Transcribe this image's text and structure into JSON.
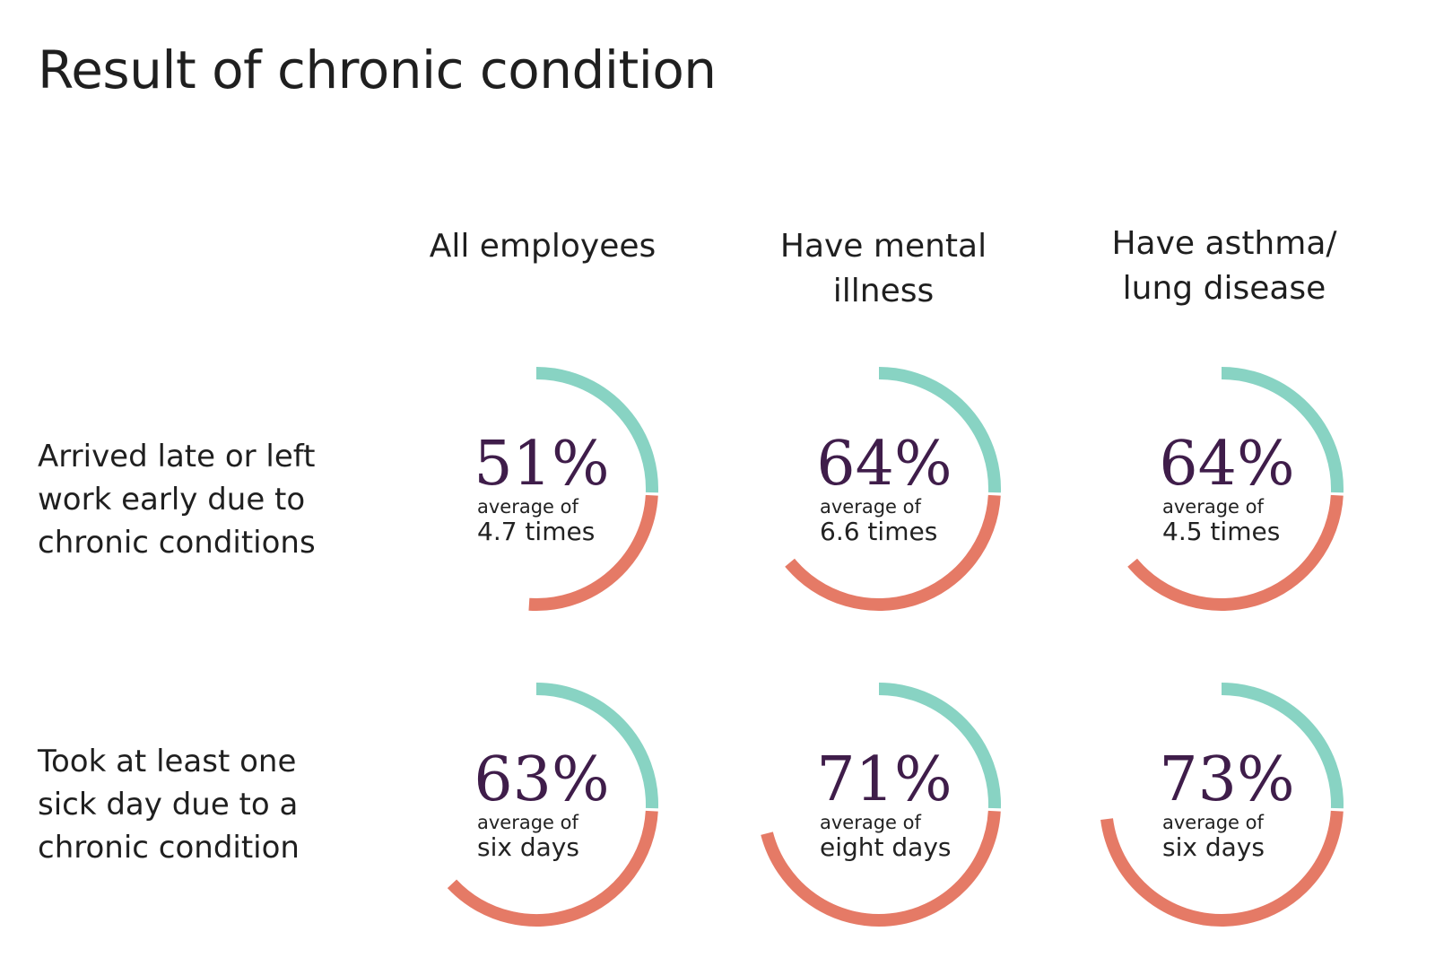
{
  "title": "Result of chronic condition",
  "colors": {
    "teal": "#88d3c3",
    "coral": "#e57a66",
    "percent": "#3f1d4a"
  },
  "chart_data": {
    "type": "donut-grid",
    "title": "Result of chronic condition",
    "columns": [
      "All employees",
      "Have mental illness",
      "Have asthma/ lung disease"
    ],
    "rows": [
      {
        "label": "Arrived late or left work early due to chronic conditions",
        "cells": [
          {
            "value": 51,
            "label": "51%",
            "sub1": "average of",
            "sub2": "4.7 times"
          },
          {
            "value": 64,
            "label": "64%",
            "sub1": "average of",
            "sub2": "6.6 times"
          },
          {
            "value": 64,
            "label": "64%",
            "sub1": "average of",
            "sub2": "4.5 times"
          }
        ]
      },
      {
        "label": "Took at least one sick day due to a chronic condition",
        "cells": [
          {
            "value": 63,
            "label": "63%",
            "sub1": "average of",
            "sub2": "six days"
          },
          {
            "value": 71,
            "label": "71%",
            "sub1": "average of",
            "sub2": "eight days"
          },
          {
            "value": 73,
            "label": "73%",
            "sub1": "average of",
            "sub2": "six days"
          }
        ]
      }
    ]
  }
}
